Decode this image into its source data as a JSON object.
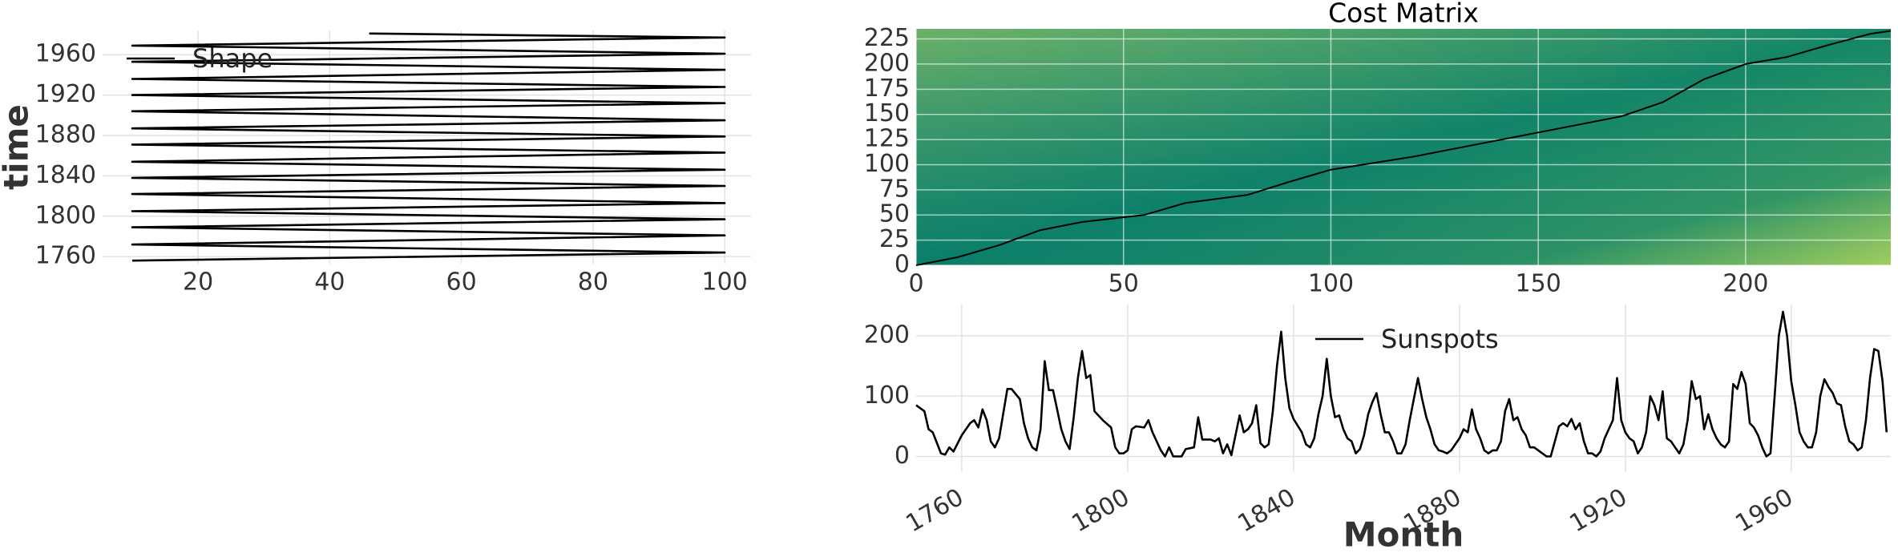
{
  "chart_data": [
    {
      "type": "line",
      "ylabel": "time",
      "xlim": [
        5.5,
        104
      ],
      "xticks": [
        20,
        40,
        60,
        80,
        100
      ],
      "ylim": [
        1753,
        1984
      ],
      "yticks": [
        1760,
        1800,
        1840,
        1880,
        1920,
        1960
      ],
      "grid": true,
      "legend": "upper left",
      "series": [
        {
          "name": "Shape",
          "color": "#000000",
          "x": [
            10,
            100,
            10,
            100,
            10,
            100,
            10,
            100,
            10,
            100,
            10,
            100,
            10,
            100,
            10,
            100,
            10,
            100,
            10,
            100,
            10,
            100,
            10,
            100,
            10,
            100,
            10,
            100,
            46
          ],
          "values": [
            1756,
            1764,
            1772,
            1781,
            1789,
            1797,
            1805,
            1813,
            1822,
            1830,
            1838,
            1846,
            1854,
            1863,
            1871,
            1879,
            1887,
            1895,
            1904,
            1912,
            1920,
            1928,
            1936,
            1945,
            1953,
            1961,
            1969,
            1977,
            1981
          ]
        }
      ]
    },
    {
      "type": "heatmap",
      "title": "Cost Matrix",
      "xlim": [
        0,
        235
      ],
      "xticks": [
        0,
        50,
        100,
        150,
        200
      ],
      "ylim": [
        0,
        235
      ],
      "yticks": [
        0,
        25,
        50,
        75,
        100,
        125,
        150,
        175,
        200,
        225
      ],
      "grid": true,
      "series": [
        {
          "color": "#000000",
          "x": [
            0,
            10,
            20,
            30,
            40,
            55,
            65,
            80,
            90,
            100,
            120,
            140,
            155,
            170,
            180,
            190,
            200,
            210,
            220,
            230,
            235
          ],
          "values": [
            0,
            8,
            20,
            35,
            43,
            50,
            62,
            70,
            83,
            95,
            108,
            124,
            136,
            148,
            162,
            185,
            200,
            207,
            219,
            230,
            233
          ]
        }
      ]
    },
    {
      "type": "line",
      "xlabel": "Month",
      "xlim": [
        1749,
        1984
      ],
      "xticks": [
        1760,
        1800,
        1840,
        1880,
        1920,
        1960
      ],
      "xtick_rotation": 30,
      "ylim": [
        -26,
        252
      ],
      "yticks": [
        0,
        100,
        200
      ],
      "grid": true,
      "legend": "upper center",
      "series": [
        {
          "name": "Sunspots",
          "color": "#000000",
          "x": [
            1749,
            1751,
            1752,
            1753,
            1755,
            1756,
            1757,
            1758,
            1760,
            1762,
            1763,
            1764,
            1765,
            1766,
            1767,
            1768,
            1769,
            1771,
            1772,
            1774,
            1775,
            1776,
            1777,
            1778,
            1779,
            1780,
            1781,
            1782,
            1783,
            1784,
            1785,
            1786,
            1787,
            1788,
            1789,
            1790,
            1791,
            1792,
            1794,
            1796,
            1797,
            1798,
            1799,
            1800,
            1801,
            1802,
            1804,
            1805,
            1806,
            1808,
            1809,
            1810,
            1811,
            1813,
            1814,
            1816,
            1817,
            1818,
            1820,
            1821,
            1822,
            1823,
            1824,
            1825,
            1827,
            1828,
            1829,
            1830,
            1831,
            1832,
            1833,
            1834,
            1835,
            1836,
            1837,
            1838,
            1839,
            1840,
            1842,
            1843,
            1844,
            1845,
            1846,
            1847,
            1848,
            1849,
            1850,
            1851,
            1852,
            1853,
            1854,
            1855,
            1856,
            1857,
            1858,
            1859,
            1860,
            1861,
            1862,
            1863,
            1864,
            1865,
            1866,
            1867,
            1868,
            1869,
            1870,
            1871,
            1872,
            1873,
            1874,
            1875,
            1876,
            1877,
            1878,
            1880,
            1881,
            1882,
            1883,
            1884,
            1885,
            1886,
            1887,
            1888,
            1889,
            1890,
            1891,
            1892,
            1893,
            1894,
            1895,
            1896,
            1897,
            1898,
            1900,
            1901,
            1902,
            1903,
            1904,
            1905,
            1906,
            1907,
            1908,
            1909,
            1910,
            1911,
            1912,
            1913,
            1914,
            1915,
            1916,
            1917,
            1918,
            1919,
            1920,
            1921,
            1922,
            1923,
            1924,
            1925,
            1926,
            1927,
            1928,
            1929,
            1930,
            1931,
            1932,
            1933,
            1934,
            1935,
            1936,
            1937,
            1938,
            1939,
            1940,
            1941,
            1942,
            1943,
            1944,
            1945,
            1946,
            1947,
            1948,
            1949,
            1950,
            1951,
            1952,
            1953,
            1954,
            1955,
            1956,
            1957,
            1958,
            1959,
            1960,
            1961,
            1962,
            1963,
            1964,
            1965,
            1966,
            1967,
            1968,
            1969,
            1970,
            1971,
            1972,
            1973,
            1974,
            1975,
            1976,
            1977,
            1978,
            1979,
            1980,
            1981,
            1982,
            1983
          ],
          "values": [
            85,
            75,
            45,
            40,
            5,
            3,
            15,
            8,
            35,
            55,
            60,
            48,
            78,
            60,
            25,
            15,
            30,
            112,
            112,
            95,
            55,
            30,
            15,
            10,
            45,
            158,
            110,
            110,
            78,
            45,
            25,
            12,
            65,
            130,
            175,
            130,
            135,
            75,
            60,
            48,
            15,
            5,
            5,
            10,
            45,
            50,
            48,
            60,
            40,
            10,
            0,
            15,
            0,
            0,
            12,
            15,
            65,
            28,
            28,
            25,
            30,
            5,
            20,
            2,
            68,
            40,
            45,
            55,
            85,
            22,
            15,
            20,
            75,
            150,
            207,
            130,
            80,
            62,
            40,
            20,
            15,
            30,
            70,
            100,
            162,
            100,
            65,
            68,
            45,
            30,
            25,
            5,
            12,
            35,
            70,
            90,
            105,
            70,
            40,
            40,
            25,
            5,
            5,
            20,
            60,
            95,
            130,
            95,
            65,
            45,
            20,
            10,
            8,
            5,
            10,
            30,
            45,
            40,
            78,
            45,
            30,
            10,
            5,
            10,
            10,
            25,
            75,
            95,
            60,
            65,
            45,
            35,
            15,
            15,
            5,
            0,
            0,
            25,
            50,
            55,
            50,
            62,
            45,
            55,
            25,
            5,
            5,
            0,
            8,
            30,
            45,
            60,
            130,
            60,
            40,
            30,
            25,
            5,
            15,
            40,
            100,
            85,
            60,
            108,
            30,
            25,
            15,
            5,
            20,
            60,
            125,
            95,
            100,
            45,
            70,
            45,
            30,
            20,
            15,
            25,
            120,
            112,
            140,
            120,
            55,
            48,
            35,
            15,
            0,
            5,
            100,
            200,
            240,
            200,
            125,
            85,
            40,
            25,
            15,
            15,
            40,
            100,
            128,
            115,
            105,
            88,
            85,
            50,
            25,
            20,
            10,
            15,
            60,
            130,
            178,
            175,
            125,
            40
          ]
        }
      ]
    }
  ]
}
